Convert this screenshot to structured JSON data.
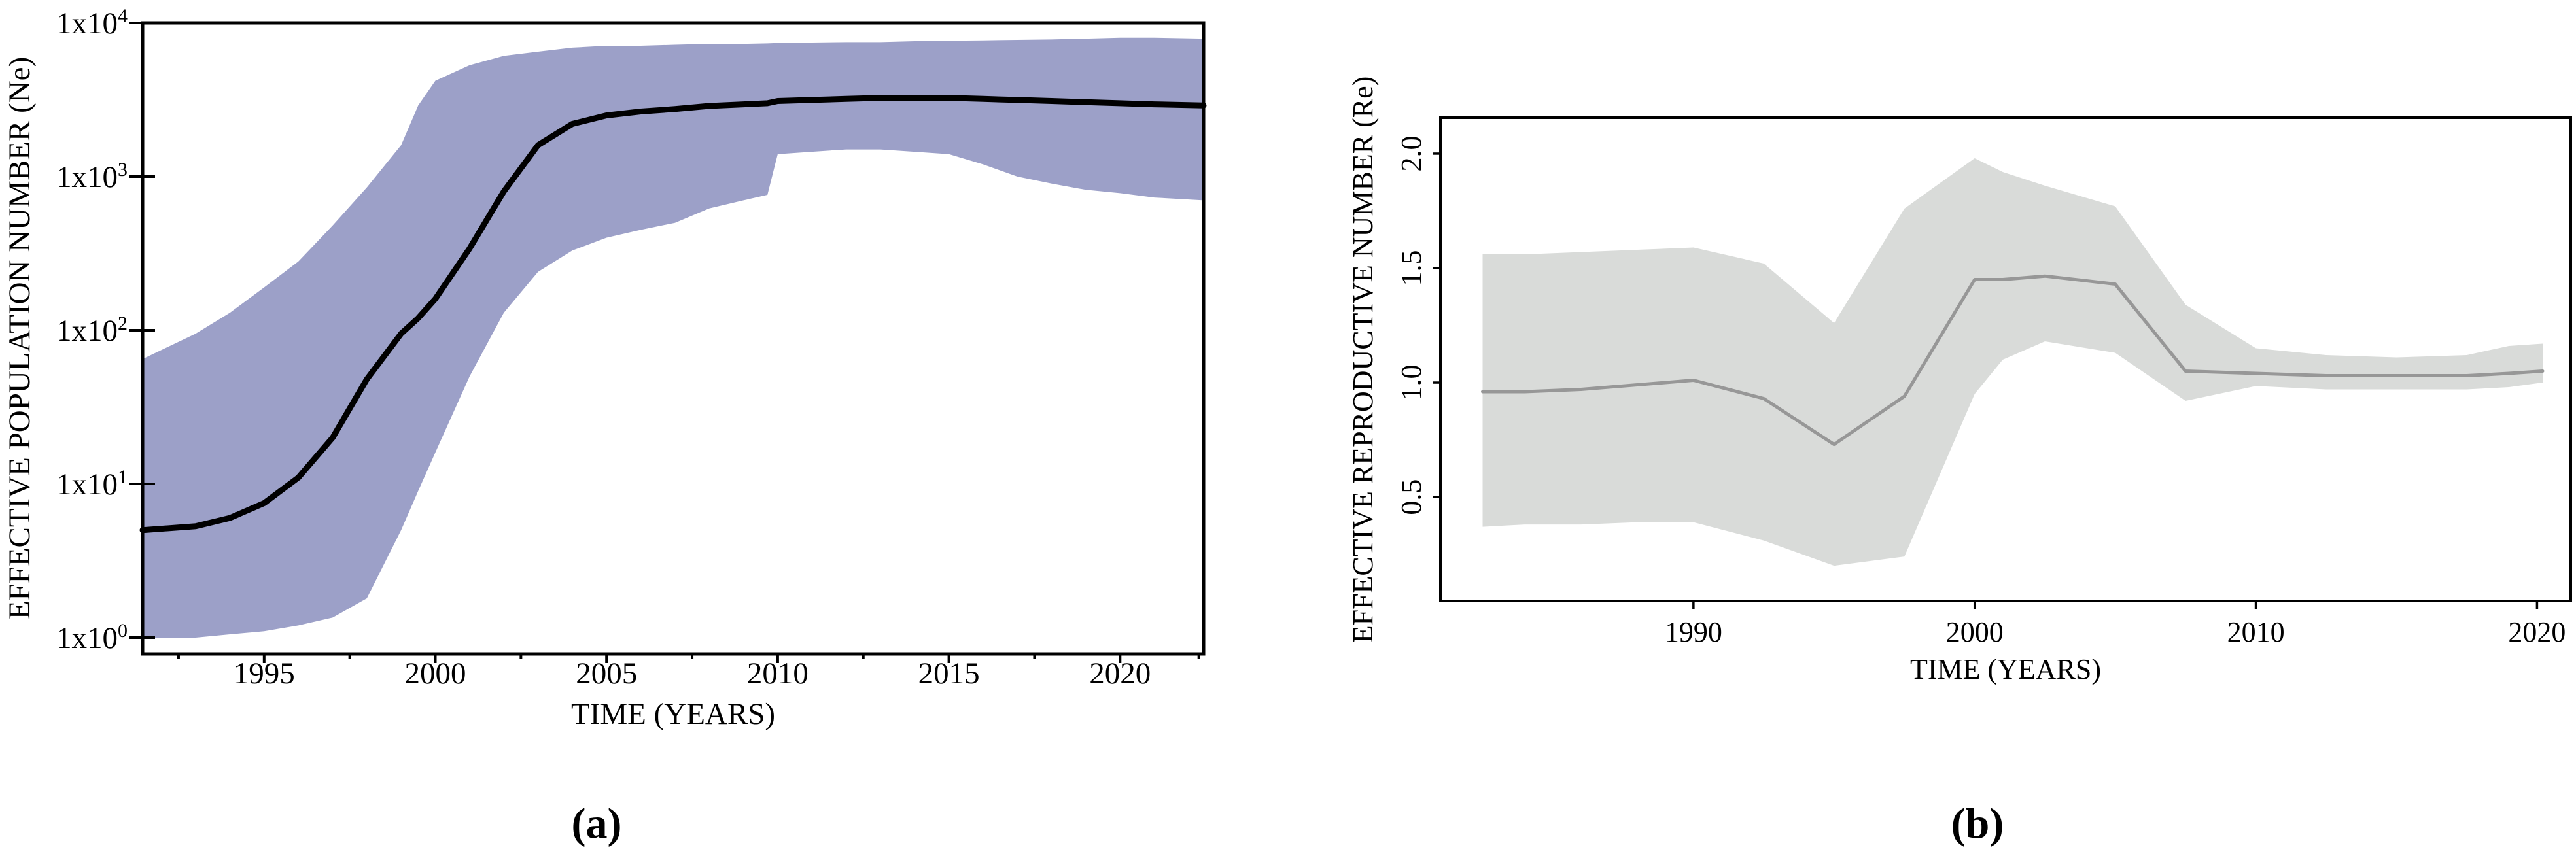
{
  "figure": {
    "caption_a": "(a)",
    "caption_b": "(b)"
  },
  "chart_data": [
    {
      "id": "chart-a",
      "type": "area",
      "title": "",
      "xlabel": "TIME (YEARS)",
      "ylabel": "EFFECTIVE POPULATION NUMBER (Ne)",
      "x_axis": {
        "range": [
          1991.45,
          2022.44
        ],
        "tick_values": [
          1995,
          2000,
          2005,
          2010,
          2015,
          2020
        ],
        "tick_labels": [
          "1995",
          "2000",
          "2005",
          "2010",
          "2015",
          "2020"
        ],
        "minor_ticks": [
          1992.5,
          1997.5,
          2002.5,
          2007.5,
          2012.5,
          2017.5,
          2022.3
        ]
      },
      "y_axis": {
        "scale": "log",
        "range": [
          0.78,
          10000
        ],
        "tick_values": [
          10000,
          1000,
          100,
          10,
          1
        ],
        "tick_labels": [
          "1x10^4",
          "1x10^3",
          "1x10^2",
          "1x10^1",
          "1x10^0"
        ]
      },
      "legend": "none",
      "grid": false,
      "colors": {
        "band": "#9ca0c8",
        "median": "#000000"
      },
      "series": {
        "x": [
          1991.45,
          1993,
          1994,
          1995,
          1996,
          1997,
          1998,
          1999,
          1999.5,
          2000,
          2001,
          2002,
          2003,
          2004,
          2005,
          2006,
          2007,
          2008,
          2009,
          2009.7,
          2010,
          2011,
          2012,
          2013,
          2014,
          2015,
          2016,
          2017,
          2018,
          2019,
          2020,
          2021,
          2022.44
        ],
        "median": [
          5,
          5.3,
          6,
          7.5,
          11,
          20,
          48,
          95,
          120,
          160,
          340,
          800,
          1600,
          2200,
          2500,
          2650,
          2750,
          2880,
          2950,
          3000,
          3100,
          3150,
          3200,
          3250,
          3250,
          3250,
          3200,
          3150,
          3100,
          3050,
          3000,
          2950,
          2900
        ],
        "lower_95_hpd": [
          1.0,
          1.0,
          1.05,
          1.1,
          1.2,
          1.35,
          1.8,
          5,
          9,
          16,
          50,
          130,
          240,
          330,
          400,
          450,
          500,
          620,
          700,
          760,
          1400,
          1450,
          1500,
          1500,
          1450,
          1400,
          1200,
          1000,
          900,
          820,
          780,
          730,
          700
        ],
        "upper_95_hpd": [
          65,
          95,
          130,
          190,
          280,
          480,
          850,
          1600,
          2900,
          4200,
          5300,
          6100,
          6500,
          6900,
          7100,
          7100,
          7200,
          7300,
          7300,
          7350,
          7400,
          7450,
          7500,
          7500,
          7600,
          7650,
          7700,
          7750,
          7800,
          7900,
          8000,
          8000,
          7900
        ]
      }
    },
    {
      "id": "chart-b",
      "type": "area",
      "title": "",
      "xlabel": "TIME (YEARS)",
      "ylabel": "EFFECTIVE REPRODUCTIVE NUMBER (Re)",
      "x_axis": {
        "range": [
          1981.0,
          2021.2
        ],
        "tick_values": [
          1990,
          2000,
          2010,
          2020
        ],
        "tick_labels": [
          "1990",
          "2000",
          "2010",
          "2020"
        ],
        "minor_ticks": []
      },
      "y_axis": {
        "scale": "linear",
        "range": [
          0.046,
          2.157
        ],
        "tick_values": [
          2.0,
          1.5,
          1.0,
          0.5
        ],
        "tick_labels": [
          "2.0",
          "1.5",
          "1.0",
          "0.5"
        ]
      },
      "legend": "none",
      "grid": false,
      "colors": {
        "band": "#d9dbd9",
        "median": "#979797"
      },
      "series": {
        "x": [
          1982.5,
          1984,
          1986,
          1988,
          1990,
          1992.5,
          1995,
          1997.5,
          2000,
          2001,
          2002.5,
          2005,
          2007.5,
          2010,
          2012.5,
          2015,
          2017.5,
          2019,
          2020.2
        ],
        "median": [
          0.96,
          0.96,
          0.97,
          0.99,
          1.01,
          0.93,
          0.73,
          0.94,
          1.45,
          1.45,
          1.465,
          1.43,
          1.05,
          1.04,
          1.03,
          1.03,
          1.03,
          1.04,
          1.05
        ],
        "lower_95_hpd": [
          0.37,
          0.38,
          0.38,
          0.39,
          0.39,
          0.31,
          0.2,
          0.24,
          0.95,
          1.1,
          1.18,
          1.13,
          0.92,
          0.985,
          0.97,
          0.97,
          0.97,
          0.98,
          1.0
        ],
        "upper_95_hpd": [
          1.56,
          1.56,
          1.57,
          1.58,
          1.59,
          1.52,
          1.26,
          1.76,
          1.98,
          1.92,
          1.86,
          1.77,
          1.34,
          1.15,
          1.12,
          1.11,
          1.12,
          1.16,
          1.17
        ]
      }
    }
  ]
}
